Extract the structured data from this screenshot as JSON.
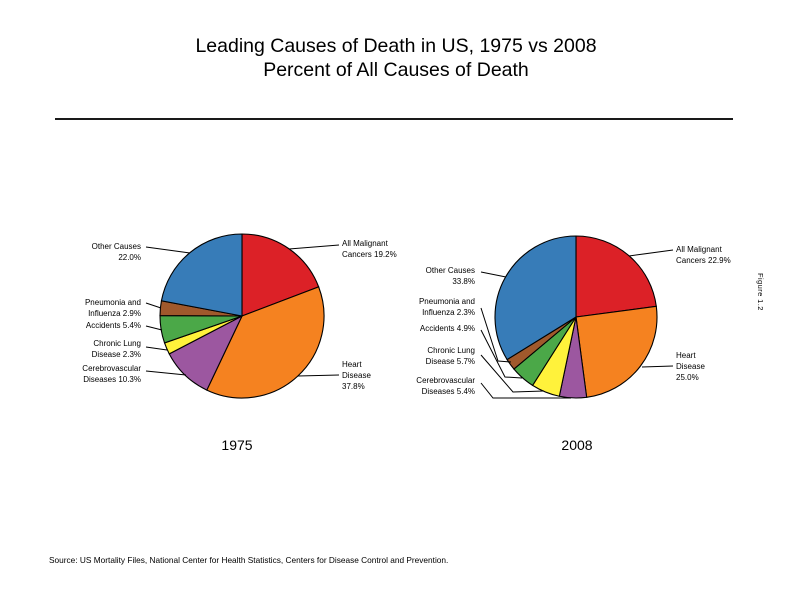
{
  "title": {
    "line1": "Leading Causes of Death in US, 1975 vs 2008",
    "line2": "Percent of All Causes of Death"
  },
  "figure_label": "Figure 1.2",
  "source": "Source: US Mortality Files, National Center for Health Statistics, Centers for Disease Control and Prevention.",
  "chart_data": [
    {
      "type": "pie",
      "title": "1975",
      "direction": "clockwise",
      "start_angle_deg": 0,
      "legend_position": "callout-labels",
      "categories": [
        "All Malignant Cancers",
        "Heart Disease",
        "Cerebrovascular Diseases",
        "Chronic Lung Disease",
        "Accidents",
        "Pneumonia and Influenza",
        "Other Causes"
      ],
      "values": [
        19.2,
        37.8,
        10.3,
        2.3,
        5.4,
        2.9,
        22.0
      ],
      "colors": [
        "#dc2127",
        "#f58220",
        "#9c57a0",
        "#fff23b",
        "#4ba848",
        "#a0592c",
        "#377cb8"
      ]
    },
    {
      "type": "pie",
      "title": "2008",
      "direction": "clockwise",
      "start_angle_deg": 0,
      "legend_position": "callout-labels",
      "categories": [
        "All Malignant Cancers",
        "Heart Disease",
        "Cerebrovascular Diseases",
        "Chronic Lung Disease",
        "Accidents",
        "Pneumonia and Influenza",
        "Other Causes"
      ],
      "values": [
        22.9,
        25.0,
        5.4,
        5.7,
        4.9,
        2.3,
        33.8
      ],
      "colors": [
        "#dc2127",
        "#f58220",
        "#9c57a0",
        "#fff23b",
        "#4ba848",
        "#a0592c",
        "#377cb8"
      ]
    }
  ],
  "labels_1975": {
    "cancers": [
      "All Malignant",
      "Cancers 19.2%"
    ],
    "heart": [
      "Heart",
      "Disease",
      "37.8%"
    ],
    "other": [
      "Other Causes",
      "22.0%"
    ],
    "pneumonia": [
      "Pneumonia and",
      "Influenza 2.9%"
    ],
    "accidents": [
      "Accidents 5.4%"
    ],
    "lung": [
      "Chronic Lung",
      "Disease 2.3%"
    ],
    "cerebro": [
      "Cerebrovascular",
      "Diseases 10.3%"
    ]
  },
  "labels_2008": {
    "cancers": [
      "All Malignant",
      "Cancers 22.9%"
    ],
    "heart": [
      "Heart",
      "Disease",
      "25.0%"
    ],
    "other": [
      "Other Causes",
      "33.8%"
    ],
    "pneumonia": [
      "Pneumonia and",
      "Influenza 2.3%"
    ],
    "accidents": [
      "Accidents 4.9%"
    ],
    "lung": [
      "Chronic Lung",
      "Disease 5.7%"
    ],
    "cerebro": [
      "Cerebrovascular",
      "Diseases 5.4%"
    ]
  }
}
